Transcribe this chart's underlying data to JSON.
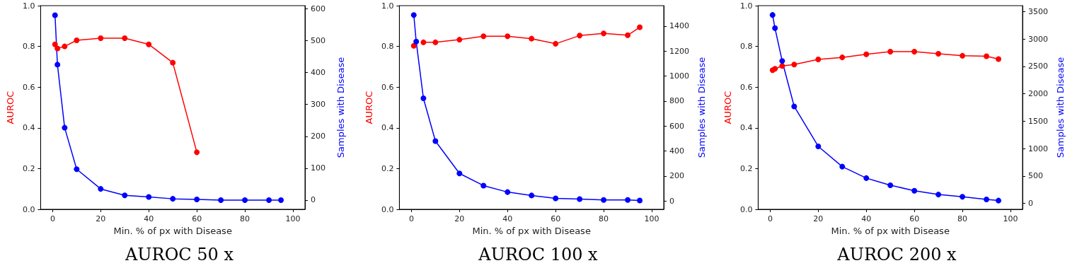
{
  "chart_data": [
    {
      "type": "line",
      "title": "AUROC 50 x",
      "xlabel": "Min. % of px with Disease",
      "ylabel": "AUROC",
      "y2label": "Samples with Disease",
      "x": [
        1,
        2,
        5,
        10,
        20,
        30,
        40,
        50,
        60,
        70,
        80,
        90,
        95
      ],
      "series": [
        {
          "color": "#ff0000",
          "axis": "y",
          "x": [
            1,
            2,
            5,
            10,
            20,
            30,
            40,
            50,
            60
          ],
          "values": [
            0.81,
            0.79,
            0.8,
            0.83,
            0.84,
            0.84,
            0.81,
            0.72,
            0.28
          ]
        },
        {
          "color": "#0000ff",
          "axis": "y2",
          "values": [
            580,
            425,
            227,
            97,
            35,
            15,
            10,
            4,
            2,
            0,
            0,
            0,
            0
          ]
        }
      ],
      "xlim": [
        -5,
        105
      ],
      "xticks": [
        0,
        20,
        40,
        60,
        80,
        100
      ],
      "ylim": [
        0,
        1
      ],
      "yticks": [
        {
          "value": 0,
          "label": "0.0"
        },
        {
          "value": 0.2,
          "label": "0.2"
        },
        {
          "value": 0.4,
          "label": "0.4"
        },
        {
          "value": 0.6,
          "label": "0.6"
        },
        {
          "value": 0.8,
          "label": "0.8"
        },
        {
          "value": 1,
          "label": "1.0"
        }
      ],
      "y2lim": [
        -29,
        610
      ],
      "y2ticks": [
        0,
        100,
        200,
        300,
        400,
        500,
        600
      ],
      "marker": "circle",
      "line_style": "solid"
    },
    {
      "type": "line",
      "title": "AUROC 100 x",
      "xlabel": "Min. % of px with Disease",
      "ylabel": "AUROC",
      "y2label": "Samples with Disease",
      "x": [
        1,
        2,
        5,
        10,
        20,
        30,
        40,
        50,
        60,
        70,
        80,
        90,
        95
      ],
      "series": [
        {
          "color": "#ff0000",
          "axis": "y",
          "values": [
            0.803,
            null,
            0.82,
            0.82,
            0.833,
            0.85,
            0.85,
            0.838,
            0.813,
            0.853,
            0.864,
            0.855,
            0.894
          ]
        },
        {
          "color": "#0000ff",
          "axis": "y2",
          "values": [
            1488,
            1276,
            822,
            479,
            220,
            123,
            71,
            44,
            21,
            15,
            8,
            8,
            4
          ]
        }
      ],
      "xlim": [
        -5,
        105
      ],
      "xticks": [
        0,
        20,
        40,
        60,
        80,
        100
      ],
      "ylim": [
        0,
        1
      ],
      "yticks": [
        {
          "value": 0,
          "label": "0.0"
        },
        {
          "value": 0.2,
          "label": "0.2"
        },
        {
          "value": 0.4,
          "label": "0.4"
        },
        {
          "value": 0.6,
          "label": "0.6"
        },
        {
          "value": 0.8,
          "label": "0.8"
        },
        {
          "value": 1,
          "label": "1.0"
        }
      ],
      "y2lim": [
        -67,
        1563
      ],
      "y2ticks": [
        0,
        200,
        400,
        600,
        800,
        1000,
        1200,
        1400
      ],
      "marker": "circle",
      "line_style": "solid"
    },
    {
      "type": "line",
      "title": "AUROC 200 x",
      "xlabel": "Min. % of px with Disease",
      "ylabel": "AUROC",
      "y2label": "Samples with Disease",
      "x": [
        1,
        2,
        5,
        10,
        20,
        30,
        40,
        50,
        60,
        70,
        80,
        90,
        95
      ],
      "series": [
        {
          "color": "#ff0000",
          "axis": "y",
          "values": [
            0.683,
            0.69,
            0.704,
            0.711,
            0.736,
            0.746,
            0.761,
            0.774,
            0.774,
            0.764,
            0.754,
            0.752,
            0.738
          ]
        },
        {
          "color": "#0000ff",
          "axis": "y2",
          "values": [
            3440,
            3200,
            2600,
            1770,
            1040,
            670,
            460,
            330,
            230,
            160,
            120,
            70,
            50
          ]
        }
      ],
      "xlim": [
        -5,
        105
      ],
      "xticks": [
        0,
        20,
        40,
        60,
        80,
        100
      ],
      "ylim": [
        0,
        1
      ],
      "yticks": [
        {
          "value": 0,
          "label": "0.0"
        },
        {
          "value": 0.2,
          "label": "0.2"
        },
        {
          "value": 0.4,
          "label": "0.4"
        },
        {
          "value": 0.6,
          "label": "0.6"
        },
        {
          "value": 0.8,
          "label": "0.8"
        },
        {
          "value": 1,
          "label": "1.0"
        }
      ],
      "y2lim": [
        -110,
        3610
      ],
      "y2ticks": [
        0,
        500,
        1000,
        1500,
        2000,
        2500,
        3000,
        3500
      ],
      "marker": "circle",
      "line_style": "solid"
    }
  ]
}
